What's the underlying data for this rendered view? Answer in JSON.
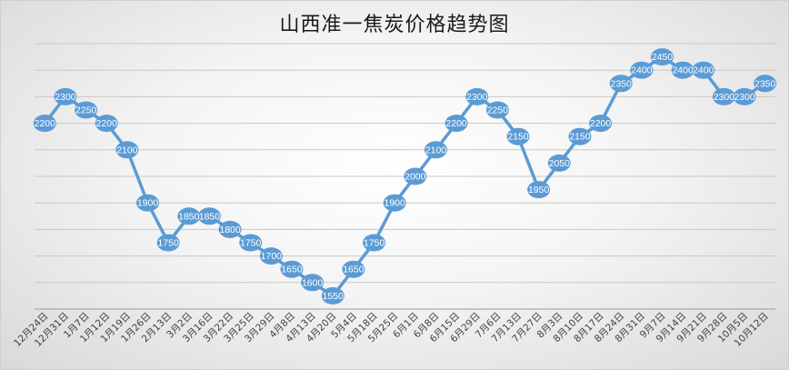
{
  "chart_data": {
    "type": "line",
    "title": "山西准一焦炭价格趋势图",
    "categories": [
      "12月24日",
      "12月31日",
      "1月7日",
      "1月12日",
      "1月19日",
      "1月26日",
      "2月13日",
      "3月2日",
      "3月16日",
      "3月22日",
      "3月25日",
      "3月29日",
      "4月8日",
      "4月13日",
      "4月20日",
      "5月4日",
      "5月18日",
      "5月25日",
      "6月1日",
      "6月8日",
      "6月15日",
      "6月29日",
      "7月6日",
      "7月13日",
      "7月27日",
      "8月3日",
      "8月10日",
      "8月17日",
      "8月24日",
      "8月31日",
      "9月7日",
      "9月14日",
      "9月21日",
      "9月28日",
      "10月5日",
      "10月12日"
    ],
    "series": [
      {
        "values": [
          2200,
          2300,
          2250,
          2200,
          2100,
          1900,
          1750,
          1850,
          1850,
          1800,
          1750,
          1700,
          1650,
          1600,
          1550,
          1650,
          1750,
          1900,
          2000,
          2100,
          2200,
          2300,
          2250,
          2150,
          1950,
          2050,
          2150,
          2200,
          2350,
          2400,
          2450,
          2400,
          2400,
          2300,
          2300,
          2350
        ],
        "color": "#5b9bd5"
      }
    ],
    "ylim": [
      1500,
      2500
    ],
    "y_grid_step": 100,
    "grid": true,
    "axis_labels_shown": false,
    "legend": "none"
  }
}
